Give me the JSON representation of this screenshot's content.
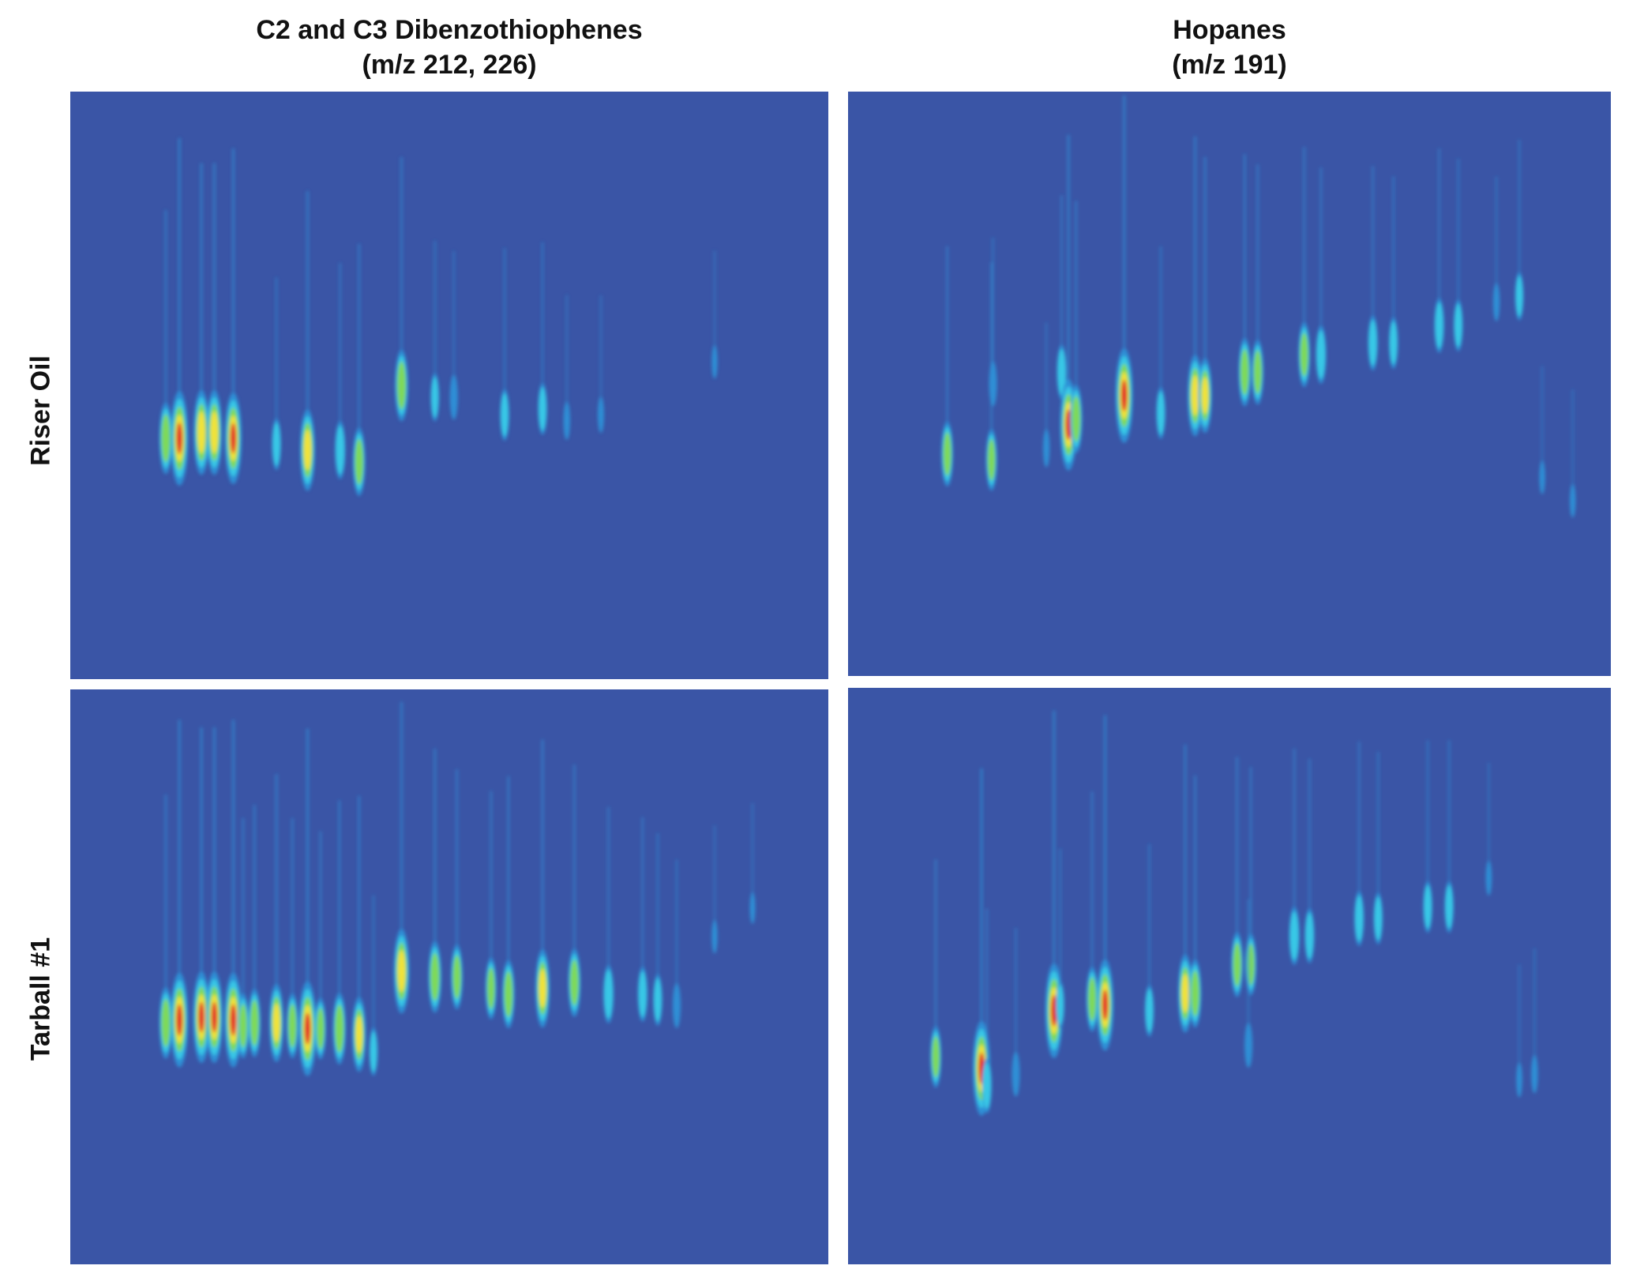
{
  "figure": {
    "background": "#ffffff",
    "panel_background": "#3a55a6",
    "colormap": [
      "#3a55a6",
      "#2f8fd6",
      "#39c8e6",
      "#7ed958",
      "#f2e23a",
      "#e3212b"
    ]
  },
  "column_titles": [
    {
      "line1": "C2 and C3 Dibenzothiophenes",
      "line2": "(m/z 212, 226)"
    },
    {
      "line1": "Hopanes",
      "line2": "(m/z 191)"
    }
  ],
  "row_labels": [
    "Riser Oil",
    "Tarball #1"
  ],
  "chart_data": [
    {
      "type": "heatmap",
      "title": "C2 and C3 Dibenzothiophenes (m/z 212, 226)",
      "row": "Riser Oil",
      "peaks": [
        {
          "x": 0.126,
          "y": 0.59,
          "h": 0.65
        },
        {
          "x": 0.144,
          "y": 0.59,
          "h": 1.0
        },
        {
          "x": 0.173,
          "y": 0.58,
          "h": 0.85
        },
        {
          "x": 0.19,
          "y": 0.58,
          "h": 0.85
        },
        {
          "x": 0.215,
          "y": 0.59,
          "h": 0.95
        },
        {
          "x": 0.272,
          "y": 0.6,
          "h": 0.35
        },
        {
          "x": 0.313,
          "y": 0.61,
          "h": 0.8
        },
        {
          "x": 0.356,
          "y": 0.61,
          "h": 0.45
        },
        {
          "x": 0.381,
          "y": 0.63,
          "h": 0.6
        },
        {
          "x": 0.437,
          "y": 0.5,
          "h": 0.65
        },
        {
          "x": 0.481,
          "y": 0.52,
          "h": 0.3
        },
        {
          "x": 0.506,
          "y": 0.52,
          "h": 0.25
        },
        {
          "x": 0.573,
          "y": 0.55,
          "h": 0.35
        },
        {
          "x": 0.623,
          "y": 0.54,
          "h": 0.35
        },
        {
          "x": 0.655,
          "y": 0.56,
          "h": 0.15
        },
        {
          "x": 0.7,
          "y": 0.55,
          "h": 0.12
        },
        {
          "x": 0.85,
          "y": 0.46,
          "h": 0.08
        }
      ]
    },
    {
      "type": "heatmap",
      "title": "Hopanes (m/z 191)",
      "row": "Riser Oil",
      "peaks": [
        {
          "x": 0.13,
          "y": 0.62,
          "h": 0.55
        },
        {
          "x": 0.188,
          "y": 0.63,
          "h": 0.5
        },
        {
          "x": 0.19,
          "y": 0.5,
          "h": 0.25
        },
        {
          "x": 0.26,
          "y": 0.61,
          "h": 0.15
        },
        {
          "x": 0.28,
          "y": 0.48,
          "h": 0.4
        },
        {
          "x": 0.289,
          "y": 0.57,
          "h": 0.95
        },
        {
          "x": 0.299,
          "y": 0.56,
          "h": 0.6
        },
        {
          "x": 0.362,
          "y": 0.52,
          "h": 1.0
        },
        {
          "x": 0.41,
          "y": 0.55,
          "h": 0.35
        },
        {
          "x": 0.455,
          "y": 0.52,
          "h": 0.8
        },
        {
          "x": 0.468,
          "y": 0.52,
          "h": 0.7
        },
        {
          "x": 0.52,
          "y": 0.48,
          "h": 0.6
        },
        {
          "x": 0.537,
          "y": 0.48,
          "h": 0.55
        },
        {
          "x": 0.598,
          "y": 0.45,
          "h": 0.55
        },
        {
          "x": 0.62,
          "y": 0.45,
          "h": 0.45
        },
        {
          "x": 0.688,
          "y": 0.43,
          "h": 0.4
        },
        {
          "x": 0.715,
          "y": 0.43,
          "h": 0.35
        },
        {
          "x": 0.775,
          "y": 0.4,
          "h": 0.4
        },
        {
          "x": 0.8,
          "y": 0.4,
          "h": 0.35
        },
        {
          "x": 0.85,
          "y": 0.36,
          "h": 0.15
        },
        {
          "x": 0.88,
          "y": 0.35,
          "h": 0.3
        },
        {
          "x": 0.91,
          "y": 0.66,
          "h": 0.08
        },
        {
          "x": 0.95,
          "y": 0.7,
          "h": 0.08
        }
      ]
    },
    {
      "type": "heatmap",
      "title": "C2 and C3 Dibenzothiophenes (m/z 212, 226)",
      "row": "Tarball #1",
      "peaks": [
        {
          "x": 0.126,
          "y": 0.58,
          "h": 0.65
        },
        {
          "x": 0.144,
          "y": 0.575,
          "h": 1.0
        },
        {
          "x": 0.173,
          "y": 0.57,
          "h": 0.95
        },
        {
          "x": 0.19,
          "y": 0.57,
          "h": 0.95
        },
        {
          "x": 0.215,
          "y": 0.575,
          "h": 1.0
        },
        {
          "x": 0.228,
          "y": 0.585,
          "h": 0.55
        },
        {
          "x": 0.243,
          "y": 0.58,
          "h": 0.6
        },
        {
          "x": 0.272,
          "y": 0.58,
          "h": 0.75
        },
        {
          "x": 0.293,
          "y": 0.585,
          "h": 0.55
        },
        {
          "x": 0.313,
          "y": 0.59,
          "h": 1.0
        },
        {
          "x": 0.33,
          "y": 0.59,
          "h": 0.5
        },
        {
          "x": 0.355,
          "y": 0.59,
          "h": 0.65
        },
        {
          "x": 0.381,
          "y": 0.6,
          "h": 0.7
        },
        {
          "x": 0.4,
          "y": 0.63,
          "h": 0.3
        },
        {
          "x": 0.437,
          "y": 0.49,
          "h": 0.85
        },
        {
          "x": 0.481,
          "y": 0.5,
          "h": 0.65
        },
        {
          "x": 0.51,
          "y": 0.5,
          "h": 0.55
        },
        {
          "x": 0.555,
          "y": 0.52,
          "h": 0.5
        },
        {
          "x": 0.578,
          "y": 0.53,
          "h": 0.6
        },
        {
          "x": 0.623,
          "y": 0.52,
          "h": 0.75
        },
        {
          "x": 0.665,
          "y": 0.51,
          "h": 0.6
        },
        {
          "x": 0.71,
          "y": 0.53,
          "h": 0.45
        },
        {
          "x": 0.755,
          "y": 0.53,
          "h": 0.4
        },
        {
          "x": 0.775,
          "y": 0.54,
          "h": 0.35
        },
        {
          "x": 0.8,
          "y": 0.55,
          "h": 0.25
        },
        {
          "x": 0.85,
          "y": 0.43,
          "h": 0.08
        },
        {
          "x": 0.9,
          "y": 0.38,
          "h": 0.05
        }
      ]
    },
    {
      "type": "heatmap",
      "title": "Hopanes (m/z 191)",
      "row": "Tarball #1",
      "peaks": [
        {
          "x": 0.115,
          "y": 0.64,
          "h": 0.5
        },
        {
          "x": 0.175,
          "y": 0.66,
          "h": 1.0
        },
        {
          "x": 0.182,
          "y": 0.69,
          "h": 0.4
        },
        {
          "x": 0.22,
          "y": 0.67,
          "h": 0.25
        },
        {
          "x": 0.27,
          "y": 0.56,
          "h": 1.0
        },
        {
          "x": 0.278,
          "y": 0.55,
          "h": 0.3
        },
        {
          "x": 0.32,
          "y": 0.54,
          "h": 0.55
        },
        {
          "x": 0.337,
          "y": 0.55,
          "h": 0.95
        },
        {
          "x": 0.395,
          "y": 0.56,
          "h": 0.35
        },
        {
          "x": 0.442,
          "y": 0.53,
          "h": 0.75
        },
        {
          "x": 0.455,
          "y": 0.53,
          "h": 0.6
        },
        {
          "x": 0.51,
          "y": 0.48,
          "h": 0.55
        },
        {
          "x": 0.528,
          "y": 0.48,
          "h": 0.5
        },
        {
          "x": 0.525,
          "y": 0.62,
          "h": 0.25
        },
        {
          "x": 0.585,
          "y": 0.43,
          "h": 0.45
        },
        {
          "x": 0.605,
          "y": 0.43,
          "h": 0.4
        },
        {
          "x": 0.67,
          "y": 0.4,
          "h": 0.4
        },
        {
          "x": 0.695,
          "y": 0.4,
          "h": 0.35
        },
        {
          "x": 0.76,
          "y": 0.38,
          "h": 0.35
        },
        {
          "x": 0.788,
          "y": 0.38,
          "h": 0.35
        },
        {
          "x": 0.84,
          "y": 0.33,
          "h": 0.1
        },
        {
          "x": 0.88,
          "y": 0.68,
          "h": 0.1
        },
        {
          "x": 0.9,
          "y": 0.67,
          "h": 0.15
        }
      ]
    }
  ]
}
